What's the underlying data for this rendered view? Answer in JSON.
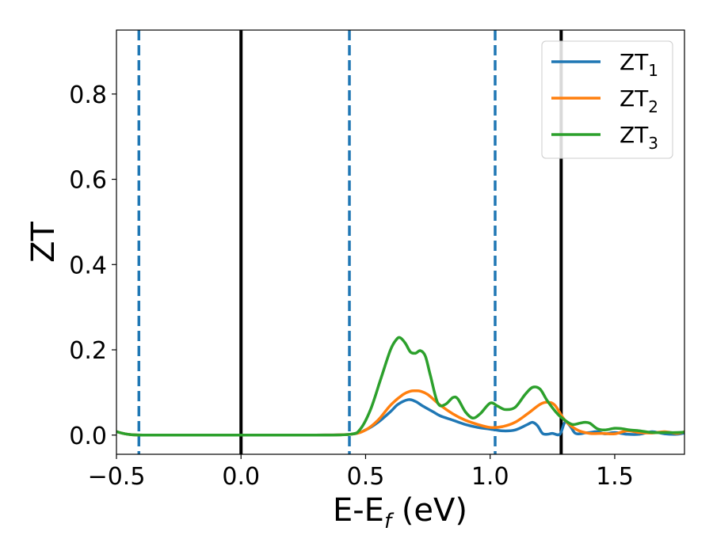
{
  "chart_data": {
    "type": "line",
    "title": "",
    "xlabel": {
      "main": "E-E",
      "sub": "f",
      "suffix": " (eV)"
    },
    "ylabel": "ZT",
    "xlim": [
      -0.5,
      1.78
    ],
    "ylim": [
      -0.045,
      0.95
    ],
    "xticks": [
      -0.5,
      0.0,
      0.5,
      1.0,
      1.5
    ],
    "xtick_labels": [
      "−0.5",
      "0.0",
      "0.5",
      "1.0",
      "1.5"
    ],
    "yticks": [
      0.0,
      0.2,
      0.4,
      0.6,
      0.8
    ],
    "ytick_labels": [
      "0.0",
      "0.2",
      "0.4",
      "0.6",
      "0.8"
    ],
    "grid": false,
    "legend_position": "top-right",
    "vlines": [
      {
        "x": -0.41,
        "style": "dashed",
        "color": "#1f77b4"
      },
      {
        "x": 0.0,
        "style": "solid",
        "color": "#000000"
      },
      {
        "x": 0.435,
        "style": "dashed",
        "color": "#1f77b4"
      },
      {
        "x": 1.02,
        "style": "dashed",
        "color": "#1f77b4"
      },
      {
        "x": 1.285,
        "style": "solid",
        "color": "#000000"
      }
    ],
    "series": [
      {
        "name": "ZT",
        "sub": "1",
        "color": "#1f77b4",
        "x": [
          -0.5,
          -0.44,
          -0.3,
          0.0,
          0.3,
          0.44,
          0.5,
          0.55,
          0.6,
          0.63,
          0.67,
          0.7,
          0.73,
          0.77,
          0.8,
          0.85,
          0.9,
          0.95,
          1.0,
          1.05,
          1.1,
          1.15,
          1.17,
          1.19,
          1.21,
          1.23,
          1.25,
          1.28,
          1.3,
          1.32,
          1.34,
          1.36,
          1.38,
          1.4,
          1.43,
          1.46,
          1.5,
          1.55,
          1.6,
          1.65,
          1.7,
          1.75,
          1.78
        ],
        "y": [
          0.008,
          0.001,
          0.0,
          0.0,
          0.0,
          0.002,
          0.012,
          0.03,
          0.055,
          0.072,
          0.083,
          0.079,
          0.068,
          0.055,
          0.045,
          0.035,
          0.025,
          0.018,
          0.014,
          0.01,
          0.012,
          0.025,
          0.03,
          0.022,
          0.004,
          0.002,
          0.004,
          0.002,
          0.03,
          0.022,
          0.005,
          0.003,
          0.005,
          0.006,
          0.008,
          0.003,
          0.006,
          0.002,
          0.002,
          0.008,
          0.003,
          0.002,
          0.005
        ]
      },
      {
        "name": "ZT",
        "sub": "2",
        "color": "#ff7f0e",
        "x": [
          -0.5,
          -0.44,
          -0.3,
          0.0,
          0.3,
          0.44,
          0.5,
          0.55,
          0.6,
          0.65,
          0.68,
          0.7,
          0.72,
          0.75,
          0.8,
          0.85,
          0.9,
          0.95,
          1.0,
          1.05,
          1.1,
          1.15,
          1.2,
          1.23,
          1.26,
          1.3,
          1.35,
          1.4,
          1.45,
          1.5,
          1.55,
          1.6,
          1.65,
          1.7,
          1.75,
          1.78
        ],
        "y": [
          0.008,
          0.001,
          0.0,
          0.0,
          0.0,
          0.002,
          0.012,
          0.035,
          0.07,
          0.095,
          0.103,
          0.104,
          0.103,
          0.095,
          0.07,
          0.05,
          0.035,
          0.025,
          0.018,
          0.02,
          0.03,
          0.05,
          0.072,
          0.077,
          0.07,
          0.035,
          0.012,
          0.004,
          0.004,
          0.003,
          0.01,
          0.006,
          0.005,
          0.008,
          0.004,
          0.008
        ]
      },
      {
        "name": "ZT",
        "sub": "3",
        "color": "#2ca02c",
        "x": [
          -0.5,
          -0.44,
          -0.3,
          0.0,
          0.3,
          0.44,
          0.48,
          0.52,
          0.56,
          0.6,
          0.625,
          0.64,
          0.66,
          0.68,
          0.7,
          0.72,
          0.74,
          0.76,
          0.79,
          0.82,
          0.85,
          0.87,
          0.9,
          0.93,
          0.96,
          1.0,
          1.03,
          1.06,
          1.1,
          1.14,
          1.17,
          1.2,
          1.23,
          1.27,
          1.3,
          1.33,
          1.36,
          1.38,
          1.4,
          1.43,
          1.46,
          1.5,
          1.53,
          1.56,
          1.6,
          1.65,
          1.7,
          1.75,
          1.78
        ],
        "y": [
          0.008,
          0.001,
          0.0,
          0.0,
          0.0,
          0.002,
          0.015,
          0.06,
          0.13,
          0.2,
          0.225,
          0.228,
          0.215,
          0.195,
          0.192,
          0.198,
          0.185,
          0.14,
          0.075,
          0.072,
          0.088,
          0.085,
          0.055,
          0.04,
          0.05,
          0.075,
          0.068,
          0.06,
          0.065,
          0.095,
          0.112,
          0.108,
          0.08,
          0.05,
          0.035,
          0.025,
          0.028,
          0.03,
          0.028,
          0.015,
          0.012,
          0.016,
          0.015,
          0.012,
          0.01,
          0.006,
          0.006,
          0.006,
          0.007
        ]
      }
    ]
  }
}
